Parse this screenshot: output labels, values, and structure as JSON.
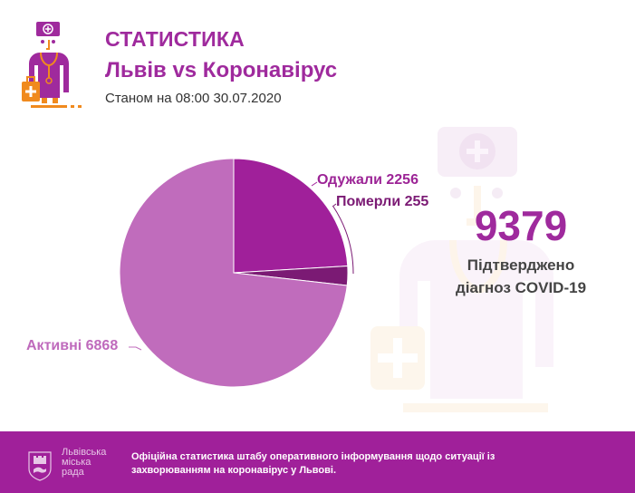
{
  "header": {
    "title": "СТАТИСТИКА",
    "subtitle": "Львів vs Коронавірус",
    "date_label": "Станом на 08:00 30.07.2020"
  },
  "icons": {
    "logo": "doctor-icon",
    "background": "doctor-watermark-icon",
    "city": "lviv-coat-of-arms-icon"
  },
  "colors": {
    "brand_purple": "#9f2a9d",
    "recovered": "#a0209a",
    "died": "#7b1a74",
    "active": "#c06cbc",
    "orange_accent": "#f08a1e",
    "footer_bg": "#a0209a"
  },
  "chart_data": {
    "type": "pie",
    "title": "Львів vs Коронавірус",
    "categories": [
      "Одужали",
      "Померли",
      "Активні"
    ],
    "values": [
      2256,
      255,
      6868
    ],
    "labels": [
      "Одужали 2256",
      "Померли 255",
      "Активні 6868"
    ],
    "colors": [
      "#a0209a",
      "#7b1a74",
      "#c06cbc"
    ],
    "start_angle": "12 o'clock, clockwise",
    "total": 9379
  },
  "summary": {
    "total": "9379",
    "caption_line1": "Підтверджено",
    "caption_line2": "діагноз COVID-19"
  },
  "footer": {
    "city_line1": "Львівська",
    "city_line2": "міська",
    "city_line3": "рада",
    "text": "Офіційна статистика штабу оперативного інформування щодо ситуації із захворюванням на коронавірус у Львові."
  }
}
